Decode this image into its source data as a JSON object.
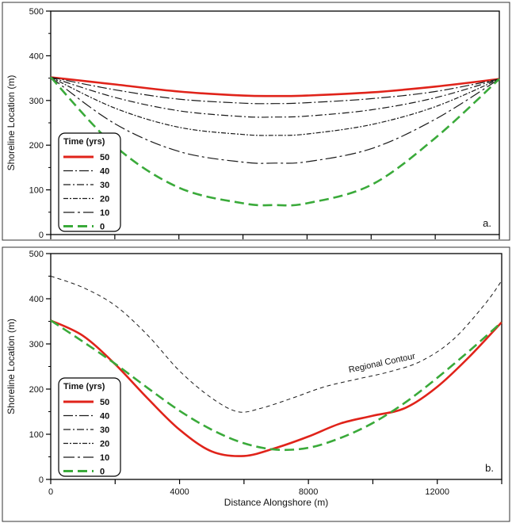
{
  "chart_data": [
    {
      "type": "line",
      "panel_label": "a.",
      "ylabel": "Shoreline Location (m)",
      "xlabel": "",
      "xlim": [
        0,
        14000
      ],
      "ylim": [
        0,
        500
      ],
      "y_ticks": [
        "0",
        "100",
        "200",
        "300",
        "400",
        "500"
      ],
      "x_tick_labels_shown": false,
      "legend": {
        "title": "Time (yrs)",
        "placement": "bottom-left",
        "entries": [
          "50",
          "40",
          "30",
          "20",
          "10",
          "0"
        ]
      },
      "series": [
        {
          "name": "50",
          "color": "#e0231a",
          "dash": "solid",
          "x": [
            0,
            2000,
            4000,
            6000,
            7000,
            8000,
            10000,
            12000,
            14000
          ],
          "y": [
            352,
            336,
            320,
            311,
            310,
            311,
            318,
            331,
            348
          ]
        },
        {
          "name": "40",
          "color": "#1a1a1a",
          "dash": "dashdot-long",
          "x": [
            0,
            2000,
            4000,
            6000,
            7000,
            8000,
            10000,
            12000,
            14000
          ],
          "y": [
            352,
            324,
            303,
            294,
            293,
            295,
            304,
            320,
            348
          ]
        },
        {
          "name": "30",
          "color": "#1a1a1a",
          "dash": "dashdot",
          "x": [
            0,
            2000,
            4000,
            6000,
            7000,
            8000,
            10000,
            12000,
            14000
          ],
          "y": [
            352,
            307,
            277,
            264,
            263,
            265,
            279,
            306,
            348
          ]
        },
        {
          "name": "20",
          "color": "#1a1a1a",
          "dash": "dashdot-dense",
          "x": [
            0,
            2000,
            4000,
            6000,
            7000,
            8000,
            10000,
            12000,
            14000
          ],
          "y": [
            352,
            283,
            240,
            224,
            222,
            225,
            246,
            286,
            348
          ]
        },
        {
          "name": "10",
          "color": "#1a1a1a",
          "dash": "dashdot-sparse",
          "x": [
            0,
            2000,
            4000,
            6000,
            7000,
            8000,
            10000,
            12000,
            14000
          ],
          "y": [
            352,
            248,
            186,
            162,
            160,
            163,
            192,
            258,
            348
          ]
        },
        {
          "name": "0",
          "color": "#3aaa3a",
          "dash": "dashed",
          "x": [
            0,
            2000,
            4000,
            6000,
            7000,
            8000,
            10000,
            12000,
            14000
          ],
          "y": [
            352,
            198,
            105,
            70,
            66,
            70,
            111,
            216,
            348
          ]
        }
      ]
    },
    {
      "type": "line",
      "panel_label": "b.",
      "ylabel": "Shoreline Location (m)",
      "xlabel": "Distance Alongshore (m)",
      "xlim": [
        0,
        14000
      ],
      "ylim": [
        0,
        500
      ],
      "x_ticks": [
        "0",
        "4000",
        "8000",
        "12000"
      ],
      "y_ticks": [
        "0",
        "100",
        "200",
        "300",
        "400",
        "500"
      ],
      "annotation": "Regional Contour",
      "legend": {
        "title": "Time (yrs)",
        "placement": "bottom-left",
        "entries": [
          "50",
          "40",
          "30",
          "20",
          "10",
          "0"
        ]
      },
      "series": [
        {
          "name": "Regional Contour",
          "color": "#1a1a1a",
          "dash": "thin-dashed",
          "x": [
            0,
            1000,
            2000,
            3000,
            4000,
            5000,
            5800,
            6500,
            7500,
            8500,
            9500,
            10500,
            11500,
            12500,
            13500,
            14000
          ],
          "y": [
            450,
            425,
            385,
            320,
            240,
            180,
            150,
            157,
            180,
            205,
            222,
            238,
            262,
            310,
            390,
            440
          ]
        },
        {
          "name": "10",
          "color": "#1a1a1a",
          "dash": "dashdot-sparse",
          "x": [
            0,
            1000,
            2000,
            3000,
            4000,
            5000,
            6000,
            7000,
            8000,
            9000,
            10000,
            11000,
            12000,
            13000,
            14000
          ],
          "y": [
            352,
            318,
            255,
            180,
            110,
            62,
            52,
            70,
            95,
            124,
            141,
            158,
            205,
            272,
            348
          ]
        },
        {
          "name": "20",
          "color": "#1a1a1a",
          "dash": "dashdot-dense",
          "x": [
            0,
            1000,
            2000,
            3000,
            4000,
            5000,
            6000,
            7000,
            8000,
            9000,
            10000,
            11000,
            12000,
            13000,
            14000
          ],
          "y": [
            352,
            318,
            255,
            180,
            110,
            62,
            52,
            70,
            95,
            124,
            141,
            158,
            205,
            272,
            348
          ]
        },
        {
          "name": "30",
          "color": "#1a1a1a",
          "dash": "dashdot",
          "x": [
            0,
            1000,
            2000,
            3000,
            4000,
            5000,
            6000,
            7000,
            8000,
            9000,
            10000,
            11000,
            12000,
            13000,
            14000
          ],
          "y": [
            352,
            318,
            255,
            180,
            110,
            62,
            52,
            70,
            95,
            124,
            141,
            158,
            205,
            272,
            348
          ]
        },
        {
          "name": "40",
          "color": "#1a1a1a",
          "dash": "dashdot-long",
          "x": [
            0,
            1000,
            2000,
            3000,
            4000,
            5000,
            6000,
            7000,
            8000,
            9000,
            10000,
            11000,
            12000,
            13000,
            14000
          ],
          "y": [
            352,
            318,
            255,
            180,
            110,
            62,
            52,
            70,
            95,
            124,
            141,
            158,
            205,
            272,
            348
          ]
        },
        {
          "name": "50",
          "color": "#e0231a",
          "dash": "solid",
          "x": [
            0,
            1000,
            2000,
            3000,
            4000,
            5000,
            6000,
            7000,
            8000,
            9000,
            10000,
            11000,
            12000,
            13000,
            14000
          ],
          "y": [
            352,
            318,
            255,
            180,
            110,
            62,
            52,
            70,
            95,
            124,
            141,
            158,
            205,
            272,
            348
          ]
        },
        {
          "name": "0",
          "color": "#3aaa3a",
          "dash": "dashed",
          "x": [
            0,
            1000,
            2000,
            3000,
            4000,
            5000,
            6000,
            7000,
            8000,
            9000,
            10000,
            11000,
            12000,
            13000,
            14000
          ],
          "y": [
            352,
            305,
            256,
            203,
            152,
            110,
            80,
            66,
            70,
            92,
            125,
            170,
            225,
            285,
            348
          ]
        }
      ]
    }
  ]
}
